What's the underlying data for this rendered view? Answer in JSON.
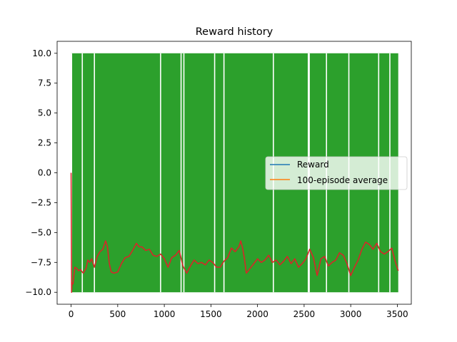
{
  "chart_data": {
    "type": "line",
    "title": "Reward history",
    "xlabel": "",
    "ylabel": "",
    "xlim": [
      -150,
      3650
    ],
    "ylim": [
      -11.0,
      11.0
    ],
    "xticks": [
      0,
      500,
      1000,
      1500,
      2000,
      2500,
      3000,
      3500
    ],
    "xtick_labels": [
      "0",
      "500",
      "1000",
      "1500",
      "2000",
      "2500",
      "3000",
      "3500"
    ],
    "yticks": [
      10.0,
      7.5,
      5.0,
      2.5,
      0.0,
      -2.5,
      -5.0,
      -7.5,
      -10.0
    ],
    "ytick_labels": [
      "10.0",
      "7.5",
      "5.0",
      "2.5",
      "0.0",
      "−2.5",
      "−5.0",
      "−7.5",
      "−10.0"
    ],
    "grid": false,
    "legend_position": "center-right",
    "series": [
      {
        "name": "Reward",
        "color": "#1f77b4",
        "in_legend": true,
        "drawn": false
      },
      {
        "name": "100-episode average",
        "color": "#ff7f0e",
        "in_legend": true,
        "drawn": false
      },
      {
        "name": "",
        "color": "#2ca02c",
        "style": "oscillating between -10 and 10 every episode",
        "x_range": [
          0,
          3510
        ],
        "low": -10,
        "high": 10,
        "gaps": [
          5,
          120,
          250,
          960,
          1180,
          1210,
          1540,
          1640,
          2170,
          2545,
          2555,
          2740,
          2980,
          3300,
          3420
        ]
      },
      {
        "name": "",
        "color": "#d62728",
        "style": "100-episode moving average",
        "x": [
          0,
          5,
          10,
          20,
          30,
          40,
          60,
          80,
          100,
          130,
          160,
          180,
          200,
          220,
          250,
          280,
          310,
          340,
          370,
          390,
          410,
          430,
          460,
          500,
          540,
          580,
          620,
          660,
          700,
          730,
          760,
          800,
          840,
          880,
          920,
          960,
          1000,
          1040,
          1080,
          1120,
          1160,
          1200,
          1240,
          1280,
          1320,
          1360,
          1400,
          1440,
          1480,
          1520,
          1560,
          1600,
          1640,
          1680,
          1720,
          1760,
          1800,
          1820,
          1840,
          1860,
          1880,
          1920,
          1960,
          2000,
          2040,
          2080,
          2120,
          2160,
          2200,
          2240,
          2280,
          2320,
          2360,
          2400,
          2440,
          2480,
          2520,
          2560,
          2600,
          2640,
          2680,
          2720,
          2760,
          2800,
          2840,
          2880,
          2920,
          2960,
          3000,
          3040,
          3080,
          3120,
          3160,
          3200,
          3240,
          3280,
          3320,
          3360,
          3400,
          3440,
          3480,
          3510
        ],
        "values": [
          0.0,
          -10.0,
          -9.2,
          -9.3,
          -8.6,
          -7.9,
          -8.0,
          -8.2,
          -8.1,
          -8.4,
          -8.0,
          -7.3,
          -7.5,
          -7.2,
          -7.9,
          -7.0,
          -6.6,
          -6.4,
          -5.7,
          -6.2,
          -7.6,
          -8.3,
          -8.4,
          -8.3,
          -7.6,
          -7.1,
          -7.0,
          -6.5,
          -5.9,
          -6.2,
          -6.2,
          -6.5,
          -6.4,
          -6.9,
          -7.0,
          -6.8,
          -7.2,
          -7.9,
          -7.1,
          -6.9,
          -6.5,
          -7.8,
          -8.4,
          -7.8,
          -7.3,
          -7.6,
          -7.5,
          -7.7,
          -7.3,
          -7.5,
          -7.9,
          -7.9,
          -7.4,
          -7.1,
          -6.3,
          -6.6,
          -6.2,
          -5.7,
          -6.3,
          -7.2,
          -8.4,
          -8.0,
          -7.6,
          -7.2,
          -7.5,
          -7.3,
          -6.9,
          -7.5,
          -7.3,
          -7.7,
          -7.4,
          -7.0,
          -7.6,
          -7.2,
          -7.9,
          -7.6,
          -7.2,
          -6.4,
          -7.1,
          -8.6,
          -7.2,
          -7.0,
          -7.8,
          -7.5,
          -7.3,
          -6.7,
          -6.9,
          -7.6,
          -8.6,
          -7.9,
          -7.3,
          -6.4,
          -5.8,
          -6.0,
          -6.4,
          -5.9,
          -6.6,
          -6.8,
          -6.6,
          -6.3,
          -7.5,
          -8.2
        ]
      }
    ]
  }
}
